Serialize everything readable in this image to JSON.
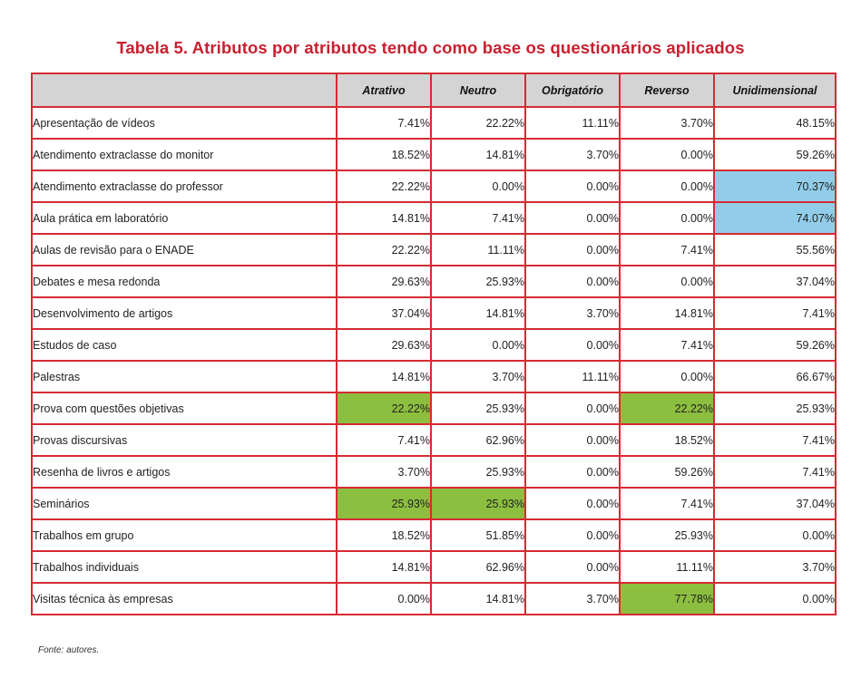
{
  "title": "Tabela 5. Atributos por atributos tendo como base os questionários aplicados",
  "headers": [
    "",
    "Atrativo",
    "Neutro",
    "Obrigatório",
    "Reverso",
    "Unidimensional"
  ],
  "rows": [
    {
      "label": "Apresentação de vídeos",
      "values": [
        "7.41%",
        "22.22%",
        "11.11%",
        "3.70%",
        "48.15%"
      ],
      "highlights": [
        "",
        "",
        "",
        "",
        ""
      ]
    },
    {
      "label": "Atendimento extraclasse do monitor",
      "values": [
        "18.52%",
        "14.81%",
        "3.70%",
        "0.00%",
        "59.26%"
      ],
      "highlights": [
        "",
        "",
        "",
        "",
        ""
      ]
    },
    {
      "label": "Atendimento extraclasse do professor",
      "values": [
        "22.22%",
        "0.00%",
        "0.00%",
        "0.00%",
        "70.37%"
      ],
      "highlights": [
        "",
        "",
        "",
        "",
        "blue"
      ]
    },
    {
      "label": "Aula prática em laboratório",
      "values": [
        "14.81%",
        "7.41%",
        "0.00%",
        "0.00%",
        "74.07%"
      ],
      "highlights": [
        "",
        "",
        "",
        "",
        "blue"
      ]
    },
    {
      "label": "Aulas de revisão para o ENADE",
      "values": [
        "22.22%",
        "11.11%",
        "0.00%",
        "7.41%",
        "55.56%"
      ],
      "highlights": [
        "",
        "",
        "",
        "",
        ""
      ]
    },
    {
      "label": "Debates e mesa redonda",
      "values": [
        "29.63%",
        "25.93%",
        "0.00%",
        "0.00%",
        "37.04%"
      ],
      "highlights": [
        "",
        "",
        "",
        "",
        ""
      ]
    },
    {
      "label": "Desenvolvimento de artigos",
      "values": [
        "37.04%",
        "14.81%",
        "3.70%",
        "14.81%",
        "7.41%"
      ],
      "highlights": [
        "",
        "",
        "",
        "",
        ""
      ]
    },
    {
      "label": "Estudos de caso",
      "values": [
        "29.63%",
        "0.00%",
        "0.00%",
        "7.41%",
        "59.26%"
      ],
      "highlights": [
        "",
        "",
        "",
        "",
        ""
      ]
    },
    {
      "label": "Palestras",
      "values": [
        "14.81%",
        "3.70%",
        "11.11%",
        "0.00%",
        "66.67%"
      ],
      "highlights": [
        "",
        "",
        "",
        "",
        ""
      ]
    },
    {
      "label": "Prova com questões objetivas",
      "values": [
        "22.22%",
        "25.93%",
        "0.00%",
        "22.22%",
        "25.93%"
      ],
      "highlights": [
        "green",
        "",
        "",
        "green",
        ""
      ]
    },
    {
      "label": "Provas discursivas",
      "values": [
        "7.41%",
        "62.96%",
        "0.00%",
        "18.52%",
        "7.41%"
      ],
      "highlights": [
        "",
        "",
        "",
        "",
        ""
      ]
    },
    {
      "label": "Resenha de livros e artigos",
      "values": [
        "3.70%",
        "25.93%",
        "0.00%",
        "59.26%",
        "7.41%"
      ],
      "highlights": [
        "",
        "",
        "",
        "",
        ""
      ]
    },
    {
      "label": "Seminários",
      "values": [
        "25.93%",
        "25.93%",
        "0.00%",
        "7.41%",
        "37.04%"
      ],
      "highlights": [
        "green",
        "green",
        "",
        "",
        ""
      ]
    },
    {
      "label": "Trabalhos em grupo",
      "values": [
        "18.52%",
        "51.85%",
        "0.00%",
        "25.93%",
        "0.00%"
      ],
      "highlights": [
        "",
        "",
        "",
        "",
        ""
      ]
    },
    {
      "label": "Trabalhos individuais",
      "values": [
        "14.81%",
        "62.96%",
        "0.00%",
        "11.11%",
        "3.70%"
      ],
      "highlights": [
        "",
        "",
        "",
        "",
        ""
      ]
    },
    {
      "label": "Visitas técnica às empresas",
      "values": [
        "0.00%",
        "14.81%",
        "3.70%",
        "77.78%",
        "0.00%"
      ],
      "highlights": [
        "",
        "",
        "",
        "green",
        ""
      ]
    }
  ],
  "source": "Fonte: autores.",
  "colors": {
    "title": "#c8202f",
    "border": "#d62a34",
    "header_bg": "#d4d4d4",
    "green": "#8cbf3f",
    "blue": "#91cde8"
  }
}
